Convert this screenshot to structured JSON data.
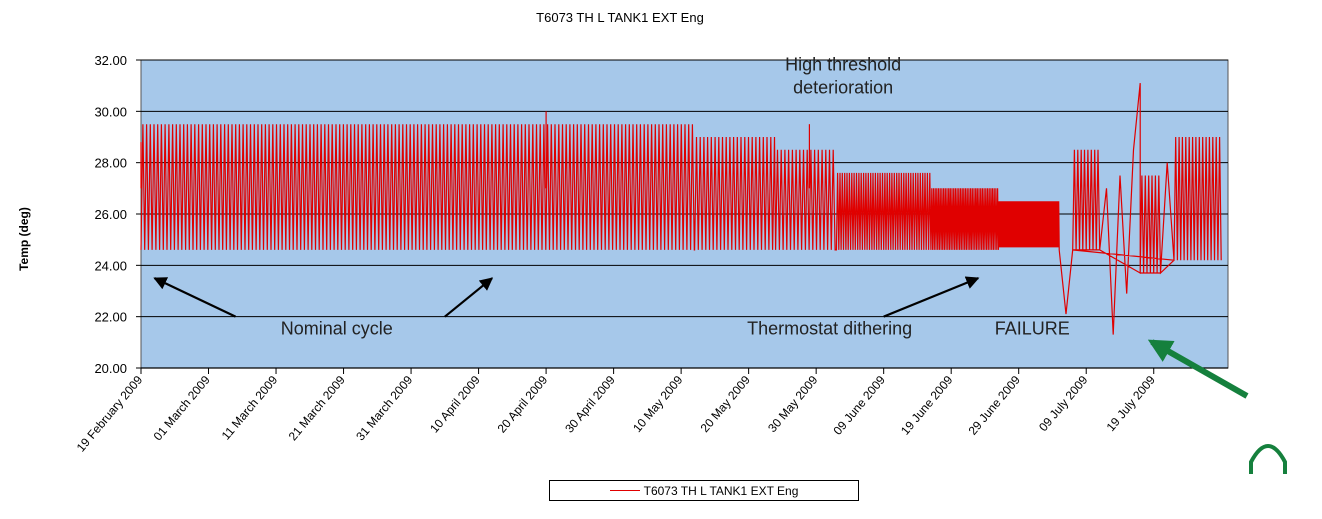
{
  "chart_data": {
    "type": "line",
    "title": "T6073 TH L TANK1 EXT Eng",
    "xlabel": "",
    "ylabel": "Temp (deg)",
    "ylim": [
      20,
      32
    ],
    "yticks": [
      "20.00",
      "22.00",
      "24.00",
      "26.00",
      "28.00",
      "30.00",
      "32.00"
    ],
    "xticks": [
      "19 February 2009",
      "01 March 2009",
      "11 March 2009",
      "21 March 2009",
      "31 March 2009",
      "10 April 2009",
      "20 April 2009",
      "30 April 2009",
      "10 May 2009",
      "20 May 2009",
      "30 May 2009",
      "09 June 2009",
      "19 June 2009",
      "29 June 2009",
      "09 July 2009",
      "19 July 2009"
    ],
    "xlim": [
      "2009-02-19",
      "2009-07-30"
    ],
    "grid": true,
    "legend_position": "bottom",
    "colors": {
      "plot_background": "#a6c8ea",
      "series": "#e00000",
      "arrow_black": "#000000",
      "arrow_green": "#15803d"
    },
    "series": [
      {
        "name": "T6073 TH L TANK1 EXT Eng",
        "segments": [
          {
            "from": "2009-02-19",
            "to": "2009-05-12",
            "low": 24.6,
            "high": 29.5,
            "period_days": 0.55
          },
          {
            "from": "2009-05-12",
            "to": "2009-05-24",
            "low": 24.6,
            "high": 29.0,
            "period_days": 0.55
          },
          {
            "from": "2009-05-24",
            "to": "2009-06-02",
            "low": 24.6,
            "high": 28.5,
            "period_days": 0.55
          },
          {
            "from": "2009-06-02",
            "to": "2009-06-16",
            "low": 24.6,
            "high": 27.6,
            "period_days": 0.35
          },
          {
            "from": "2009-06-16",
            "to": "2009-06-26",
            "low": 24.6,
            "high": 27.0,
            "period_days": 0.25
          },
          {
            "from": "2009-06-26",
            "to": "2009-07-05",
            "low": 24.7,
            "high": 26.5,
            "period_days": 0.15
          },
          {
            "from": "2009-07-07",
            "to": "2009-07-11",
            "low": 24.6,
            "high": 28.5,
            "period_days": 0.5
          },
          {
            "from": "2009-07-17",
            "to": "2009-07-20",
            "low": 23.7,
            "high": 27.5,
            "period_days": 0.5
          },
          {
            "from": "2009-07-22",
            "to": "2009-07-29",
            "low": 24.2,
            "high": 29.0,
            "period_days": 0.5
          }
        ],
        "points": [
          [
            "2009-07-05",
            24.6
          ],
          [
            "2009-07-06",
            22.1
          ],
          [
            "2009-07-07",
            24.6
          ],
          [
            "2009-07-11",
            24.6
          ],
          [
            "2009-07-12",
            27.0
          ],
          [
            "2009-07-13",
            21.3
          ],
          [
            "2009-07-14",
            27.5
          ],
          [
            "2009-07-15",
            22.9
          ],
          [
            "2009-07-16",
            28.5
          ],
          [
            "2009-07-17",
            31.1
          ],
          [
            "2009-07-17",
            23.7
          ],
          [
            "2009-07-20",
            23.7
          ],
          [
            "2009-07-21",
            28.0
          ],
          [
            "2009-07-22",
            24.2
          ]
        ],
        "spikes": [
          [
            "2009-04-20",
            30.0
          ],
          [
            "2009-05-29",
            29.5
          ],
          [
            "2009-02-19",
            28.8
          ]
        ]
      }
    ],
    "annotations": [
      {
        "text": "High threshold",
        "x": "2009-06-03",
        "y": 31.6
      },
      {
        "text": "deterioration",
        "x": "2009-06-03",
        "y": 30.7
      },
      {
        "text": "Nominal cycle",
        "x": "2009-03-20",
        "y": 21.3
      },
      {
        "text": "Thermostat dithering",
        "x": "2009-06-01",
        "y": 21.3
      },
      {
        "text": "FAILURE",
        "x": "2009-07-01",
        "y": 21.3
      }
    ],
    "arrows": [
      {
        "from": [
          "2009-03-05",
          22.0
        ],
        "to": [
          "2009-02-21",
          23.5
        ],
        "color": "arrow_black"
      },
      {
        "from": [
          "2009-04-05",
          22.0
        ],
        "to": [
          "2009-04-12",
          23.5
        ],
        "color": "arrow_black"
      },
      {
        "from": [
          "2009-06-09",
          22.0
        ],
        "to": [
          "2009-06-23",
          23.5
        ],
        "color": "arrow_black"
      }
    ]
  }
}
